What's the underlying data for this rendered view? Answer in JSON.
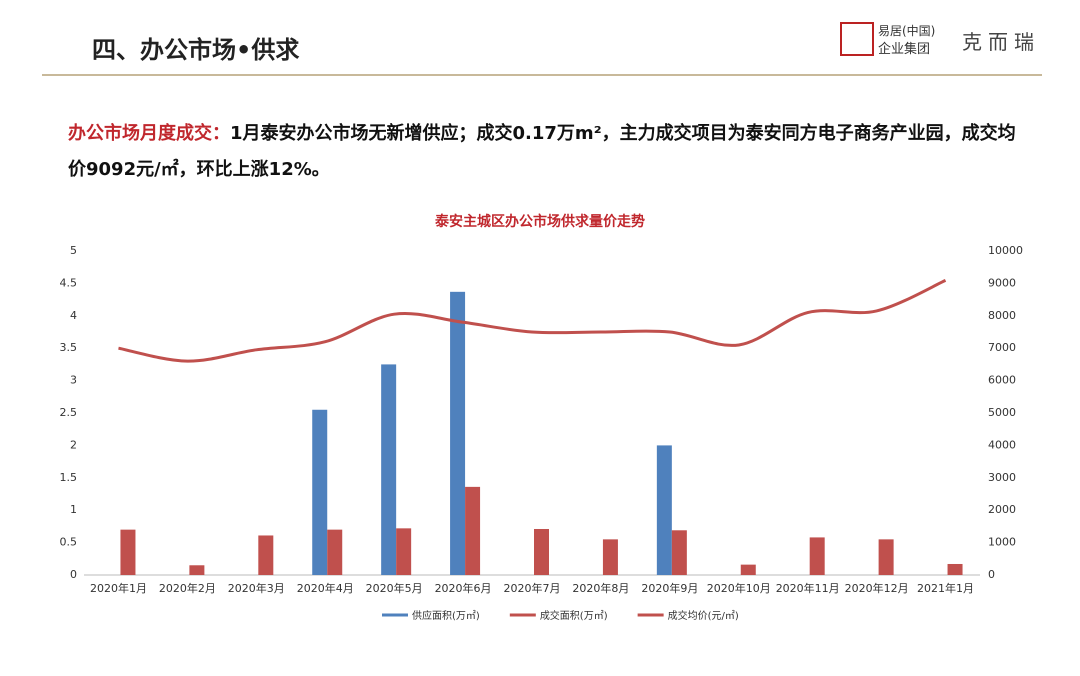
{
  "header": {
    "title": "四、办公市场•供求",
    "logo_name": "易居(中国)",
    "logo_group": "企业集团",
    "logo_brand": "克而瑞"
  },
  "summary": {
    "label": "办公市场月度成交：",
    "text": "1月泰安办公市场无新增供应；成交0.17万m²，主力成交项目为泰安同方电子商务产业园，成交均价9092元/㎡，环比上涨12%。"
  },
  "chart_data": {
    "type": "bar-line",
    "title": "泰安主城区办公市场供求量价走势",
    "categories": [
      "2020年1月",
      "2020年2月",
      "2020年3月",
      "2020年4月",
      "2020年5月",
      "2020年6月",
      "2020年7月",
      "2020年8月",
      "2020年9月",
      "2020年10月",
      "2020年11月",
      "2020年12月",
      "2021年1月"
    ],
    "series": [
      {
        "name": "供应面积(万㎡)",
        "color": "#4f81bd",
        "type": "bar",
        "values": [
          null,
          null,
          null,
          2.55,
          3.25,
          4.37,
          null,
          null,
          2.0,
          null,
          null,
          null,
          null
        ]
      },
      {
        "name": "成交面积(万㎡)",
        "color": "#c0504d",
        "type": "bar",
        "values": [
          0.7,
          0.15,
          0.61,
          0.7,
          0.72,
          1.36,
          0.71,
          0.55,
          0.69,
          0.16,
          0.58,
          0.55,
          0.17
        ]
      },
      {
        "name": "成交均价(元/㎡)",
        "color": "#c0504d",
        "type": "line",
        "axis": "y2",
        "values": [
          7000,
          6600,
          6950,
          7200,
          8050,
          7800,
          7500,
          7500,
          7500,
          7100,
          8100,
          8150,
          9092
        ]
      }
    ],
    "ylim": [
      0,
      5
    ],
    "yticks": [
      0,
      0.5,
      1,
      1.5,
      2,
      2.5,
      3,
      3.5,
      4,
      4.5,
      5
    ],
    "y2lim": [
      0,
      10000
    ],
    "y2ticks": [
      0,
      1000,
      2000,
      3000,
      4000,
      5000,
      6000,
      7000,
      8000,
      9000,
      10000
    ],
    "legend": "bottom"
  }
}
